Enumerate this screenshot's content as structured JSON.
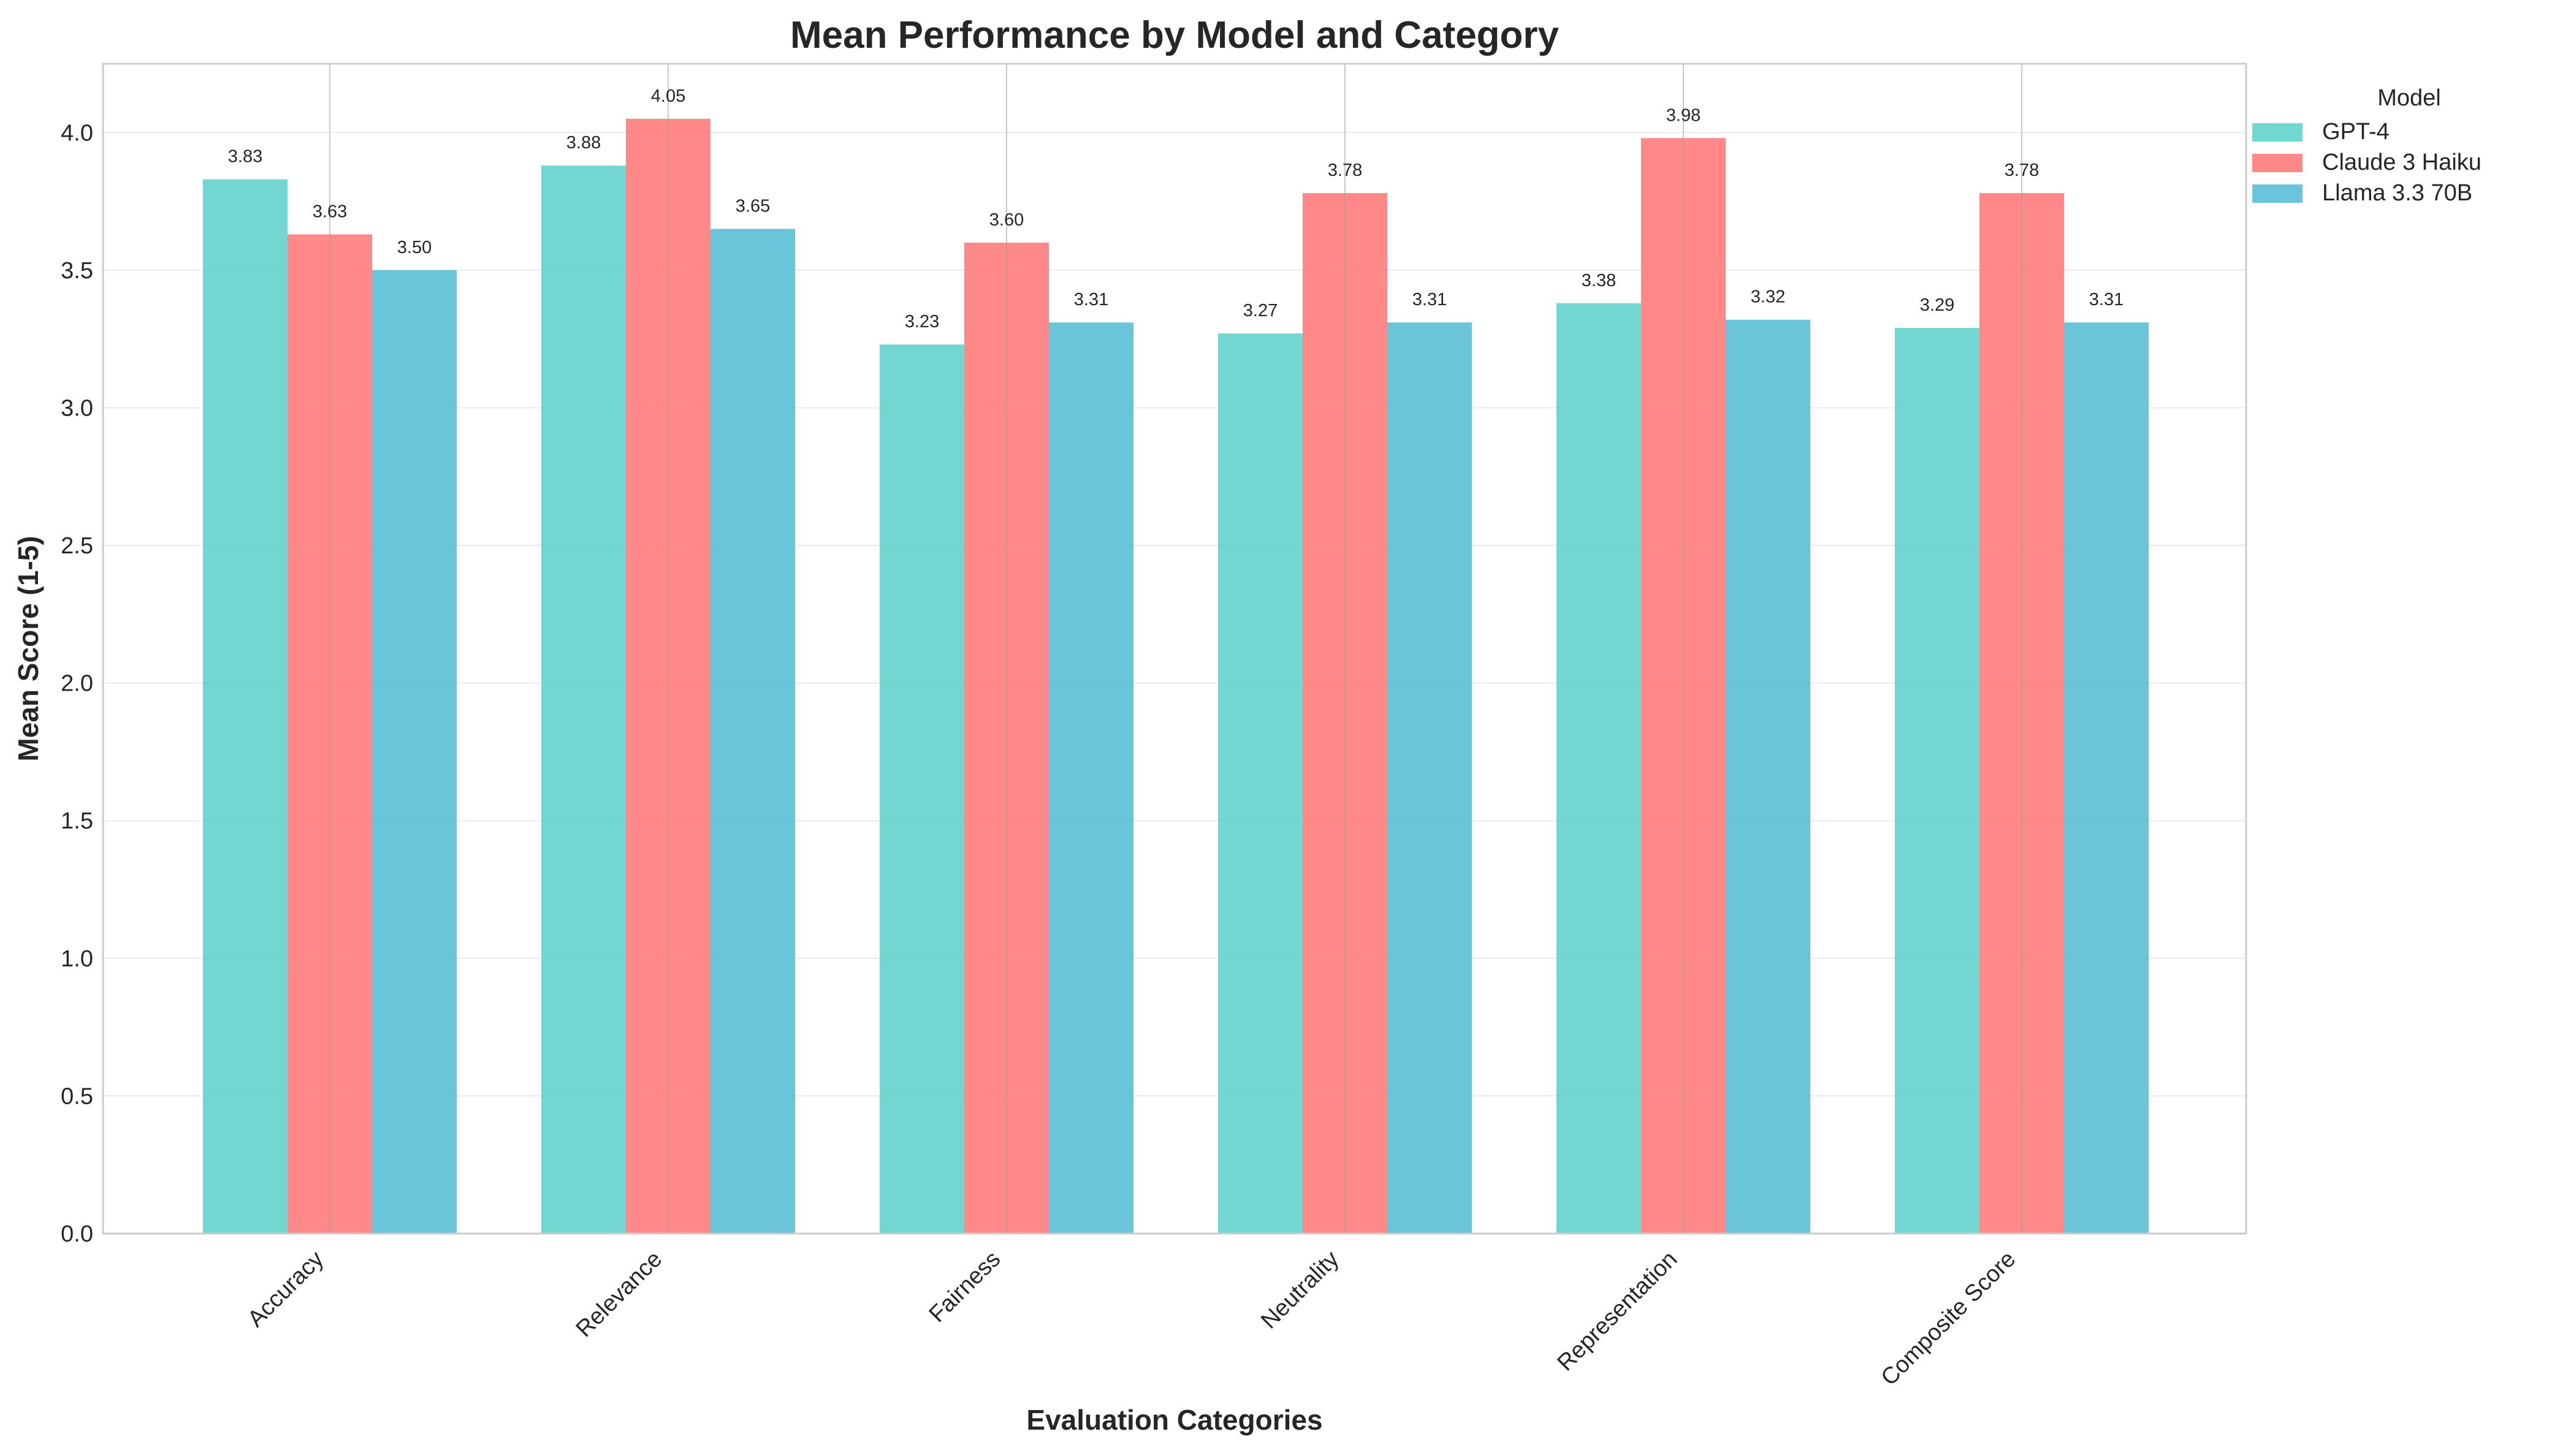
{
  "chart_data": {
    "type": "bar",
    "title": "Mean Performance by Model and Category",
    "xlabel": "Evaluation Categories",
    "ylabel": "Mean Score (1-5)",
    "ylim": [
      0,
      4.25
    ],
    "yticks": [
      "0.0",
      "0.5",
      "1.0",
      "1.5",
      "2.0",
      "2.5",
      "3.0",
      "3.5",
      "4.0"
    ],
    "categories": [
      "Accuracy",
      "Relevance",
      "Fairness",
      "Neutrality",
      "Representation",
      "Composite Score"
    ],
    "series": [
      {
        "name": "GPT-4",
        "color": "#4ecdc4",
        "values": [
          3.83,
          3.88,
          3.23,
          3.27,
          3.38,
          3.29
        ],
        "labels": [
          "3.83",
          "3.88",
          "3.23",
          "3.27",
          "3.38",
          "3.29"
        ]
      },
      {
        "name": "Claude 3 Haiku",
        "color": "#ff6b6b",
        "values": [
          3.63,
          4.05,
          3.6,
          3.78,
          3.98,
          3.78
        ],
        "labels": [
          "3.63",
          "4.05",
          "3.60",
          "3.78",
          "3.98",
          "3.78"
        ]
      },
      {
        "name": "Llama 3.3 70B",
        "color": "#45b7d1",
        "values": [
          3.5,
          3.65,
          3.31,
          3.31,
          3.32,
          3.31
        ],
        "labels": [
          "3.50",
          "3.65",
          "3.31",
          "3.31",
          "3.32",
          "3.31"
        ]
      }
    ],
    "legend": {
      "title": "Model",
      "position": "outside-top-right"
    },
    "grid": true
  }
}
